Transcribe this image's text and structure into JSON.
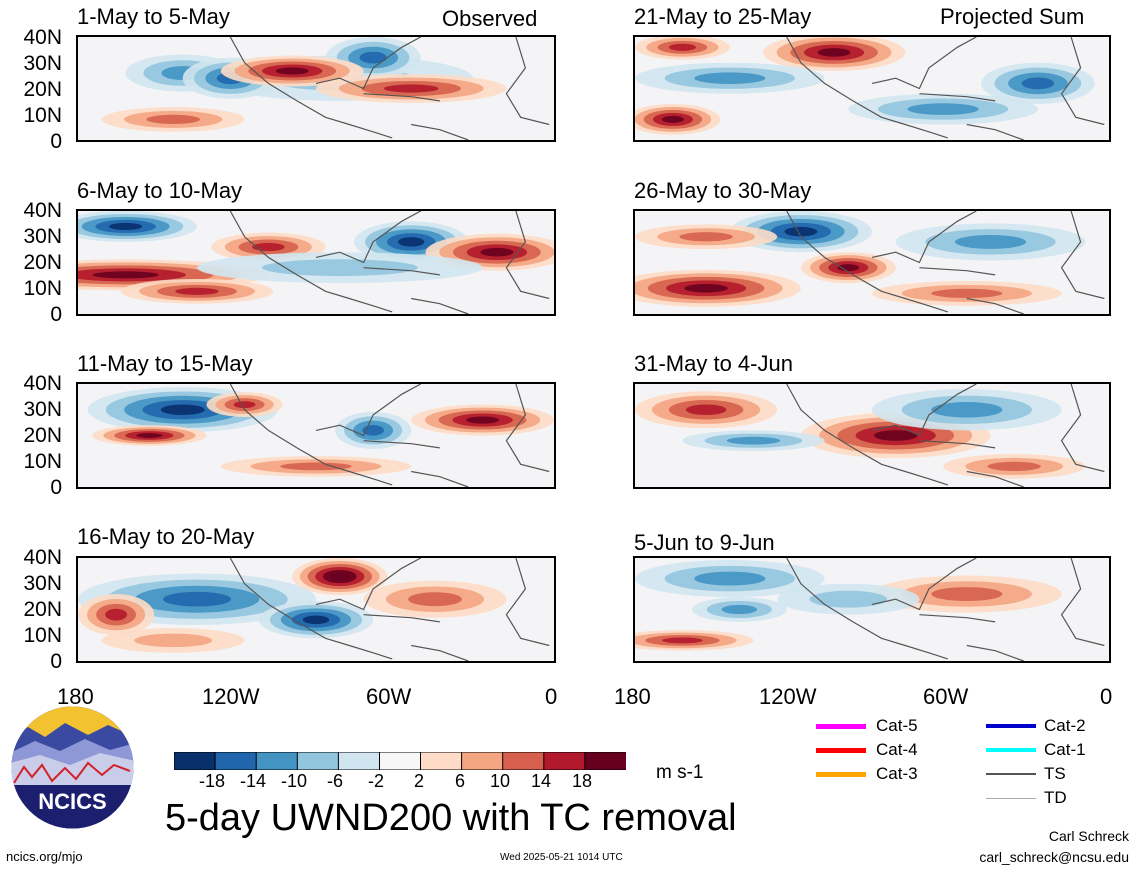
{
  "title": "5-day UWND200 with TC removal",
  "units": "m s-1",
  "left_column_label": "Observed",
  "right_column_label": "Projected Sum",
  "lat_labels": [
    "40N",
    "30N",
    "20N",
    "10N",
    "0"
  ],
  "lon_labels": [
    "180",
    "120W",
    "60W",
    "0"
  ],
  "panels": [
    {
      "title": "1-May to 5-May"
    },
    {
      "title": "6-May to 10-May"
    },
    {
      "title": "11-May to 15-May"
    },
    {
      "title": "16-May to 20-May"
    },
    {
      "title": "21-May to 25-May"
    },
    {
      "title": "26-May to 30-May"
    },
    {
      "title": "31-May to 4-Jun"
    },
    {
      "title": "5-Jun to 9-Jun"
    }
  ],
  "colorbar": {
    "colors": [
      "#08306b",
      "#2166ac",
      "#4393c3",
      "#92c5de",
      "#d1e5f0",
      "#f7f7f7",
      "#fddbc7",
      "#f4a582",
      "#d6604d",
      "#b2182b",
      "#67001f"
    ],
    "labels": [
      "-18",
      "-14",
      "-10",
      "-6",
      "-2",
      "2",
      "6",
      "10",
      "14",
      "18"
    ]
  },
  "legend": [
    {
      "label": "Cat-5",
      "color": "#ff00ff"
    },
    {
      "label": "Cat-4",
      "color": "#ff0000"
    },
    {
      "label": "Cat-3",
      "color": "#ffa500"
    },
    {
      "label": "Cat-2",
      "color": "#0000cd"
    },
    {
      "label": "Cat-1",
      "color": "#00ffff"
    },
    {
      "label": "TS",
      "color": "#555555"
    },
    {
      "label": "TD",
      "color": "#aaaaaa"
    }
  ],
  "logo_text": "NCICS",
  "footer": {
    "left": "ncics.org/mjo",
    "center": "Wed 2025-05-21 1014 UTC",
    "author": "Carl Schreck",
    "email": "carl_schreck@ncsu.edu"
  }
}
